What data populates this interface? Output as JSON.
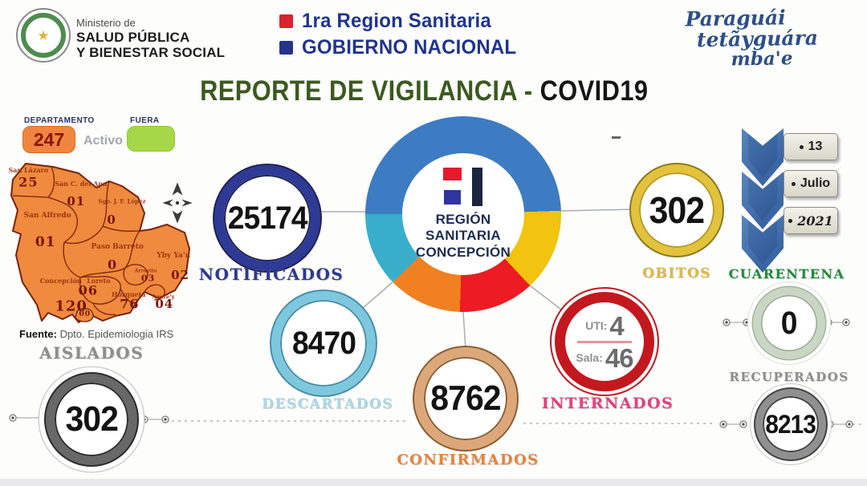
{
  "header": {
    "ministry": {
      "seal_star": "★",
      "pre": "Ministerio de",
      "name1": "SALUD PÚBLICA",
      "name2": "Y BIENESTAR SOCIAL"
    },
    "org_lines": [
      {
        "text": "1ra Region Sanitaria",
        "bullet_color": "#D8242A"
      },
      {
        "text": "GOBIERNO NACIONAL",
        "bullet_color": "#26338B"
      }
    ],
    "slogan_lines": [
      "Paraguái",
      "tetãyguára",
      "mba'e"
    ]
  },
  "title": {
    "green": "REPORTE DE VIGILANCIA - ",
    "dark": "COVID19"
  },
  "legend": {
    "departamento_label": "DEPARTAMENTO",
    "departamento_value": "247",
    "activo_label": "Activo",
    "fuera_label": "FUERA"
  },
  "map": {
    "source_bold": "Fuente:",
    "source_rest": " Dpto. Epidemiologia IRS",
    "districts": [
      {
        "name": "San Lázaro",
        "value": "25",
        "nx": 14,
        "ny": 8.3,
        "ns": 8,
        "vx": 14,
        "vy": 15.3,
        "vs": 16
      },
      {
        "name": "San C. del Apa",
        "value": "01",
        "nx": 41.5,
        "ny": 16.1,
        "ns": 8,
        "vx": 39,
        "vy": 26.2,
        "vs": 15
      },
      {
        "name": "Sgo. J. F. López",
        "value": "0",
        "nx": 63,
        "ny": 26.2,
        "ns": 7,
        "vx": 57.6,
        "vy": 36.8,
        "vs": 15
      },
      {
        "name": "San Alfredo",
        "value": "01",
        "nx": 24,
        "ny": 34.5,
        "ns": 9,
        "vx": 23,
        "vy": 49.7,
        "vs": 17
      },
      {
        "name": "Paso Barreto",
        "value": "0",
        "nx": 60.6,
        "ny": 52.4,
        "ns": 9,
        "vx": 58,
        "vy": 62.5,
        "vs": 16
      },
      {
        "name": "Yby Ya'u",
        "value": "02",
        "nx": 90,
        "ny": 57.5,
        "ns": 9,
        "vx": 93.5,
        "vy": 68.5,
        "vs": 15
      },
      {
        "name": "Concepción",
        "value": "120",
        "nx": 31,
        "ny": 71.7,
        "ns": 8,
        "vx": 36.4,
        "vy": 86.4,
        "vs": 18
      },
      {
        "name": "Loreto",
        "value": "06",
        "nx": 50.8,
        "ny": 71.7,
        "ns": 8,
        "vx": 45.3,
        "vy": 77.2,
        "vs": 16
      },
      {
        "name": "Arroyito",
        "value": "03",
        "nx": 75.4,
        "ny": 66.2,
        "ns": 6,
        "vx": 76.7,
        "vy": 70.3,
        "vs": 11
      },
      {
        "name": "Horqueta",
        "value": "76",
        "nx": 66.5,
        "ny": 79.5,
        "ns": 8,
        "vx": 66.9,
        "vy": 85,
        "vs": 16
      },
      {
        "name": "Azote'y",
        "value": "04",
        "nx": 84.7,
        "ny": 80.9,
        "ns": 7,
        "vx": 85.2,
        "vy": 85,
        "vs": 15
      },
      {
        "name": "",
        "value": "00",
        "nx": 43.6,
        "ny": 91,
        "ns": 6,
        "vx": 43.6,
        "vy": 91,
        "vs": 9
      }
    ]
  },
  "center_logo": {
    "line1": "REGIÓN",
    "line2": "SANITARIA",
    "line3": "CONCEPCIÓN"
  },
  "stats": {
    "notificados": {
      "label": "NOTIFICADOS",
      "value": "25174",
      "ring": "#2D3A96",
      "label_color": "#2A3A8F"
    },
    "obitos": {
      "label": "OBITOS",
      "value": "302",
      "ring": "#E3C23C",
      "label_color": "#DDB940"
    },
    "descartados": {
      "label": "DESCARTADOS",
      "value": "8470",
      "ring": "#7EC8DF",
      "label_color": "#A7D8E8"
    },
    "confirmados": {
      "label": "CONFIRMADOS",
      "value": "8762",
      "ring": "#DCA87A",
      "label_color": "#E8823B"
    },
    "internados": {
      "label": "INTERNADOS",
      "ring": "#C2181E",
      "label_color": "#E2417D",
      "uti_label": "UTI:",
      "uti_value": "4",
      "sala_label": "Sala:",
      "sala_value": "46"
    },
    "cuarentena": {
      "label": "CUARENTENA",
      "value": "0",
      "ring": "#C9D6C3",
      "label_color": "#1F8A3C"
    },
    "aislados": {
      "label": "AISLADOS",
      "value": "302",
      "ring": "#686868",
      "label_color": "#8E8E8E"
    },
    "recuperados": {
      "label": "RECUPERADOS",
      "value": "8213",
      "ring": "#909090",
      "label_color": "#8E8E8E"
    }
  },
  "date": {
    "bullet": "•",
    "day": "13",
    "month": "Julio",
    "year": "2021"
  },
  "misc": {
    "dash": "-"
  },
  "chart_data": {
    "type": "pie",
    "title": "REPORTE DE VIGILANCIA - COVID19",
    "subtitle": "REGIÓN SANITARIA CONCEPCIÓN - 13 Julio 2021",
    "legend_position": "none",
    "segments": [
      {
        "color": "#3D7CC2",
        "sweep_deg": 178
      },
      {
        "color": "#F2C30F",
        "sweep_deg": 49
      },
      {
        "color": "#EC1B24",
        "sweep_deg": 45
      },
      {
        "color": "#F08021",
        "sweep_deg": 44
      },
      {
        "color": "#39AECB",
        "sweep_deg": 44
      }
    ],
    "kpis": [
      {
        "label": "NOTIFICADOS",
        "value": 25174
      },
      {
        "label": "DESCARTADOS",
        "value": 8470
      },
      {
        "label": "CONFIRMADOS",
        "value": 8762
      },
      {
        "label": "OBITOS",
        "value": 302
      },
      {
        "label": "INTERNADOS UTI",
        "value": 4
      },
      {
        "label": "INTERNADOS SALA",
        "value": 46
      },
      {
        "label": "AISLADOS",
        "value": 302
      },
      {
        "label": "CUARENTENA",
        "value": 0
      },
      {
        "label": "RECUPERADOS",
        "value": 8213
      },
      {
        "label": "DEPARTAMENTO ACTIVO",
        "value": 247
      }
    ]
  }
}
